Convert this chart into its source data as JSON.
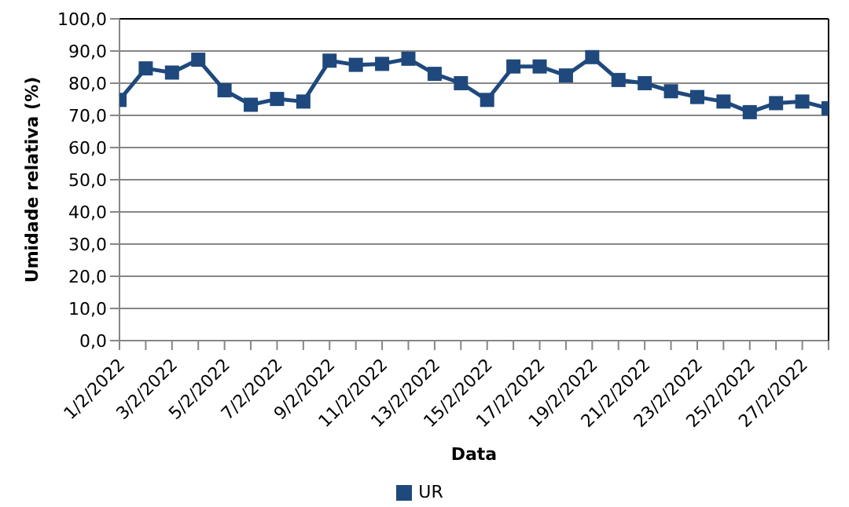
{
  "chart_data": {
    "type": "line",
    "xlabel": "Data",
    "ylabel": "Umidade relativa (%)",
    "categories": [
      "1/2/2022",
      null,
      "3/2/2022",
      null,
      "5/2/2022",
      null,
      "7/2/2022",
      null,
      "9/2/2022",
      null,
      "11/2/2022",
      null,
      "13/2/2022",
      null,
      "15/2/2022",
      null,
      "17/2/2022",
      null,
      "19/2/2022",
      null,
      "21/2/2022",
      null,
      "23/2/2022",
      null,
      "25/2/2022",
      null,
      "27/2/2022",
      null
    ],
    "series": [
      {
        "name": "UR",
        "color": "#1f497d",
        "values": [
          74.8,
          84.6,
          83.3,
          87.3,
          77.8,
          73.3,
          75.1,
          74.3,
          87.0,
          85.7,
          86.0,
          87.6,
          82.9,
          80.0,
          74.8,
          85.2,
          85.2,
          82.4,
          88.1,
          81.0,
          80.0,
          77.5,
          75.7,
          74.3,
          71.0,
          73.8,
          74.3,
          72.2
        ]
      }
    ],
    "ylim": [
      0,
      100
    ],
    "yticks": [
      {
        "value": 0,
        "label": "0,0"
      },
      {
        "value": 10,
        "label": "10,0"
      },
      {
        "value": 20,
        "label": "20,0"
      },
      {
        "value": 30,
        "label": "30,0"
      },
      {
        "value": 40,
        "label": "40,0"
      },
      {
        "value": 50,
        "label": "50,0"
      },
      {
        "value": 60,
        "label": "60,0"
      },
      {
        "value": 70,
        "label": "70,0"
      },
      {
        "value": 80,
        "label": "80,0"
      },
      {
        "value": 90,
        "label": "90,0"
      },
      {
        "value": 100,
        "label": "100,0"
      }
    ],
    "grid": "y",
    "legend": "bottom",
    "marker": "square",
    "line_style": "solid"
  }
}
